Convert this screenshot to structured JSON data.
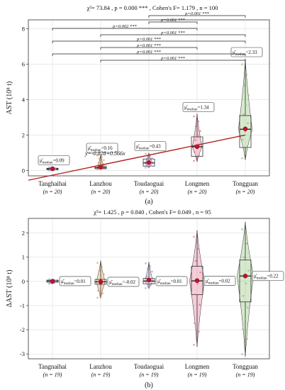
{
  "chart_data": [
    {
      "type": "box-violin",
      "panel_label": "(a)",
      "stats_line": "χ²= 73.84  ,  p = 0.000 *** ,  Cohen's  F= 1.179  ,  n = 100",
      "ylabel": "AST  (10⁸ t)",
      "ylim": [
        -0.3,
        8.5
      ],
      "yticks": [
        0,
        2,
        4,
        6,
        8
      ],
      "categories": [
        "Tanghaihai",
        "Lanzhou",
        "Toudaoguai",
        "Longmen",
        "Tongguan"
      ],
      "n_labels": [
        "(n = 20)",
        "(n = 20)",
        "(n = 20)",
        "(n = 20)",
        "(n = 20)"
      ],
      "median_labels": [
        "μ̂median=0.09",
        "μ̂median=0.16",
        "μ̂median=0.43",
        "μ̂median=1.34",
        "μ̂median=2.33"
      ],
      "series": [
        {
          "category": "Tanghaihai",
          "min": 0.0,
          "q1": 0.05,
          "median": 0.09,
          "q3": 0.13,
          "max": 0.2,
          "mean": 0.1,
          "color": "#9aa1c9"
        },
        {
          "category": "Lanzhou",
          "min": 0.05,
          "q1": 0.1,
          "median": 0.16,
          "q3": 0.25,
          "max": 0.9,
          "mean": 0.2,
          "color": "#e0a060"
        },
        {
          "category": "Toudaoguai",
          "min": 0.15,
          "q1": 0.25,
          "median": 0.43,
          "q3": 0.65,
          "max": 1.0,
          "mean": 0.45,
          "color": "#b79ad1"
        },
        {
          "category": "Longmen",
          "min": 0.5,
          "q1": 0.8,
          "median": 1.34,
          "q3": 1.9,
          "max": 3.2,
          "mean": 1.35,
          "color": "#e07090"
        },
        {
          "category": "Tongguan",
          "min": 0.6,
          "q1": 1.3,
          "median": 2.33,
          "q3": 3.1,
          "max": 6.3,
          "mean": 2.35,
          "color": "#8cc070"
        }
      ],
      "regression": {
        "label": "y=-0.828+0.566x",
        "intercept": -0.828,
        "slope": 0.566,
        "color": "#b22222"
      },
      "comparisons": [
        {
          "from": "Toudaoguai",
          "to": "Tongguan",
          "label": "p=0.001 ***"
        },
        {
          "from": "Toudaoguai",
          "to": "Longmen",
          "label": "p=0.001 ***"
        },
        {
          "from": "Tanghaihai",
          "to": "Longmen",
          "label": "p=0.002 ***"
        },
        {
          "from": "Lanzhou",
          "to": "Tongguan",
          "label": "p=0.001 ***"
        },
        {
          "from": "Tanghaihai",
          "to": "Tongguan",
          "label": "p=0.001 ***"
        },
        {
          "from": "Lanzhou",
          "to": "Longmen",
          "label": "p=0.001 ***"
        },
        {
          "from": "Tanghaihai",
          "to": "Tongguan",
          "label": "p=0.001 ***"
        },
        {
          "from": "Lanzhou",
          "to": "Tongguan",
          "label": "p=0.001 ***"
        }
      ],
      "grid": true
    },
    {
      "type": "box-violin",
      "panel_label": "(b)",
      "stats_line": "χ²= 1.425  ,  p = 0.840  ,  Cohen's  F= 0.049  ,  n = 95",
      "ylabel": "ΔAST   (10⁸ t)",
      "ylim": [
        -3.2,
        2.6
      ],
      "yticks": [
        -3,
        -2,
        -1,
        0,
        1,
        2
      ],
      "categories": [
        "Tangnaihai",
        "Lanzhou",
        "Toudaoguai",
        "Longmen",
        "Tongguan"
      ],
      "n_labels": [
        "(n = 19)",
        "(n = 19)",
        "(n = 19)",
        "(n = 19)",
        "(n = 19)"
      ],
      "median_labels": [
        "μ̂median=0.01",
        "μ̂median=-0.02",
        "μ̂median=0.01",
        "μ̂median=0.02",
        "μ̂median=0.22"
      ],
      "series": [
        {
          "category": "Tangnaihai",
          "min": -0.1,
          "q1": -0.04,
          "median": 0.01,
          "q3": 0.05,
          "max": 0.1,
          "mean": 0.0,
          "color": "#9aa1c9"
        },
        {
          "category": "Lanzhou",
          "min": -0.7,
          "q1": -0.12,
          "median": -0.02,
          "q3": 0.08,
          "max": 0.85,
          "mean": -0.02,
          "color": "#e0a060"
        },
        {
          "category": "Toudaoguai",
          "min": -0.3,
          "q1": -0.1,
          "median": 0.01,
          "q3": 0.12,
          "max": 0.8,
          "mean": 0.05,
          "color": "#b79ad1"
        },
        {
          "category": "Longmen",
          "min": -2.7,
          "q1": -0.55,
          "median": 0.02,
          "q3": 0.62,
          "max": 2.1,
          "mean": 0.03,
          "color": "#e07090"
        },
        {
          "category": "Tongguan",
          "min": -3.1,
          "q1": -0.85,
          "median": 0.22,
          "q3": 0.88,
          "max": 2.45,
          "mean": 0.22,
          "color": "#8cc070"
        }
      ],
      "grid": true
    }
  ]
}
